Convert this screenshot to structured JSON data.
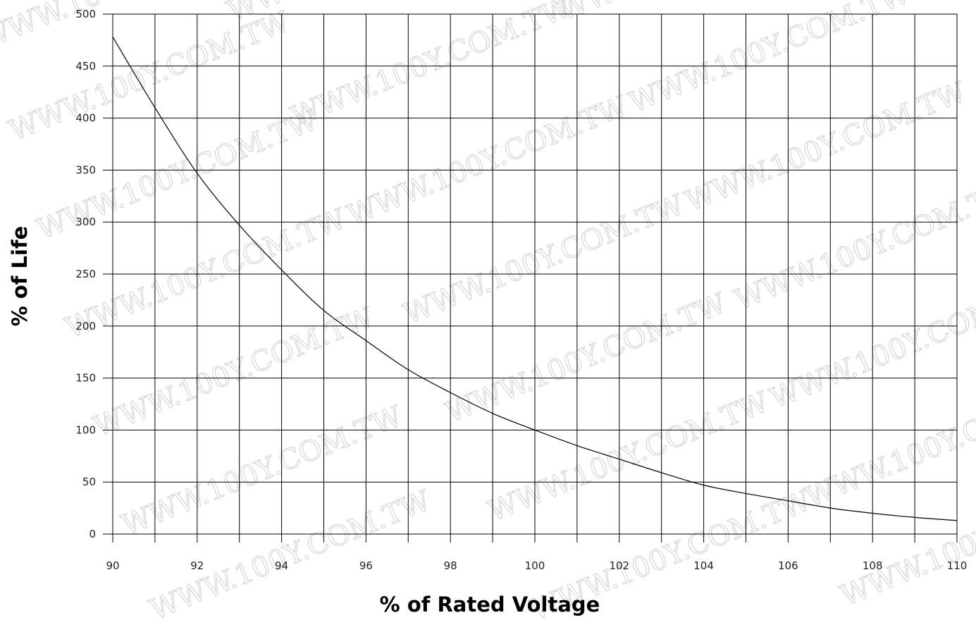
{
  "chart_data": {
    "type": "line",
    "title": "",
    "xlabel": "% of Rated Voltage",
    "ylabel": "% of Life",
    "xlim": [
      90,
      110
    ],
    "ylim": [
      0,
      500
    ],
    "x_ticks": [
      90,
      92,
      94,
      96,
      98,
      100,
      102,
      104,
      106,
      108,
      110
    ],
    "y_ticks": [
      0,
      50,
      100,
      150,
      200,
      250,
      300,
      350,
      400,
      450,
      500
    ],
    "grid": true,
    "series": [
      {
        "x": [
          90,
          91,
          92,
          93,
          94,
          95,
          96,
          97,
          98,
          99,
          100,
          101,
          102,
          103,
          104,
          105,
          106,
          107,
          108,
          109,
          110
        ],
        "y": [
          478,
          410,
          347,
          297,
          254,
          215,
          186,
          158,
          136,
          116,
          100,
          85,
          72,
          59,
          47,
          39,
          32,
          25,
          20,
          16,
          13
        ]
      }
    ]
  },
  "watermark_text": "WWW.100Y.COM.TW",
  "colors": {
    "grid": "#000000",
    "line": "#000000",
    "background": "#ffffff",
    "watermark": "#d0d0d0"
  }
}
